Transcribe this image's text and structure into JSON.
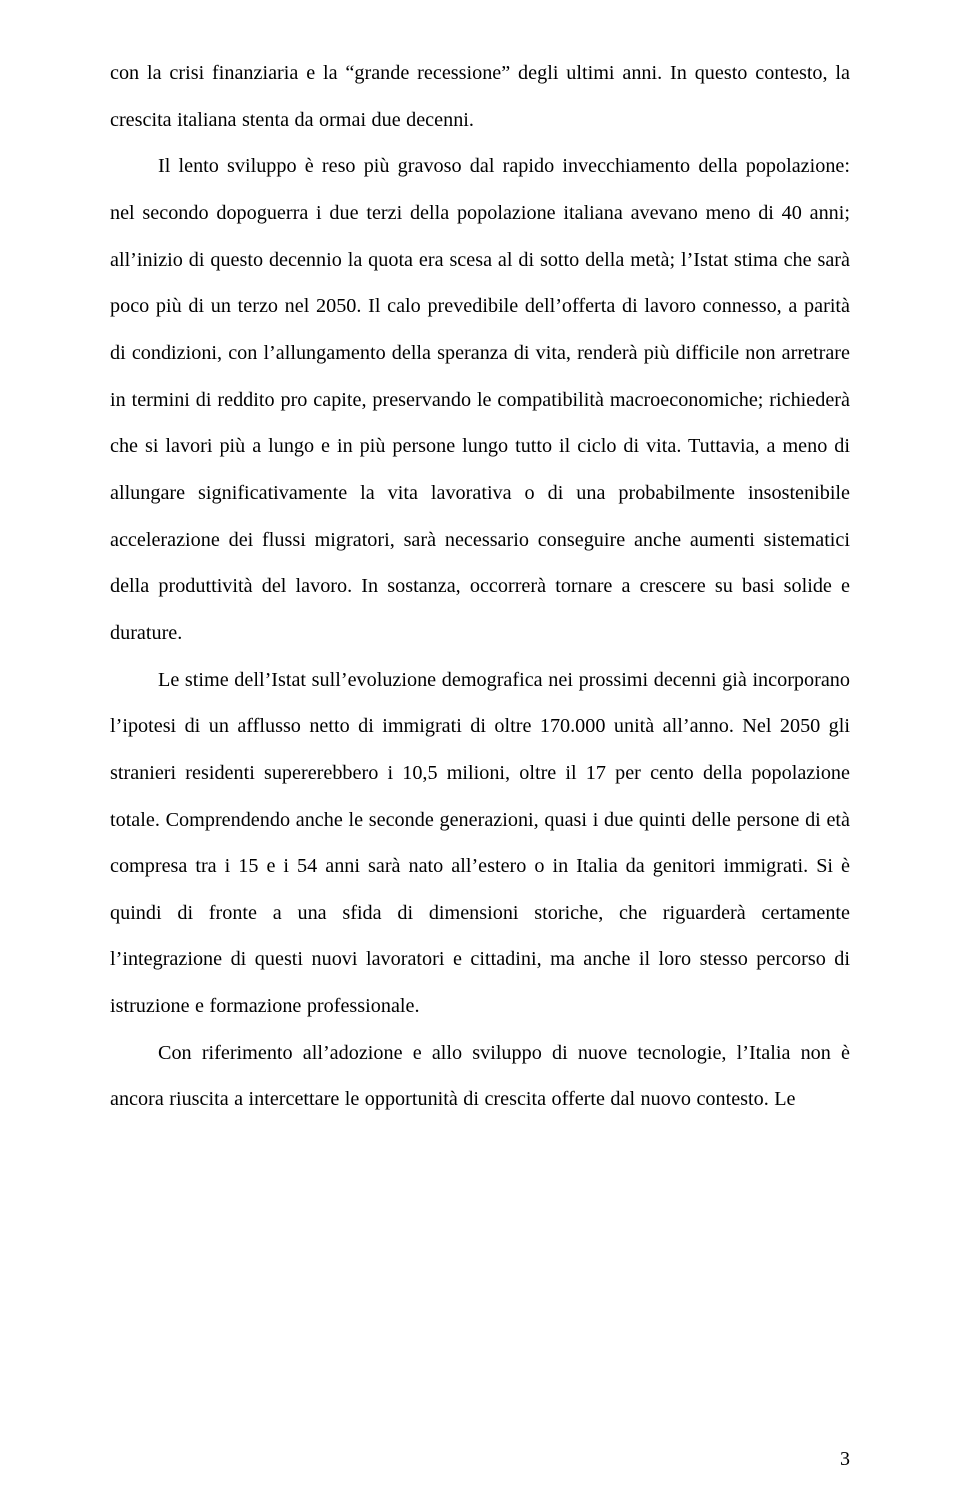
{
  "document": {
    "font_family": "Times New Roman",
    "body_fontsize_pt": 15,
    "line_height": 2.3,
    "text_align": "justify",
    "text_color": "#000000",
    "background_color": "#ffffff",
    "page_number": "3",
    "paragraphs": [
      {
        "indent": false,
        "text": "con la crisi finanziaria e la “grande recessione” degli ultimi anni. In questo contesto, la crescita italiana stenta da ormai due decenni."
      },
      {
        "indent": true,
        "text": "Il lento sviluppo è reso più gravoso dal rapido invecchiamento della popolazione: nel secondo dopoguerra i due terzi della popolazione italiana avevano meno di 40 anni; all’inizio di questo decennio la quota era scesa al di sotto della metà; l’Istat stima che sarà poco più di un terzo nel 2050. Il calo prevedibile dell’offerta di lavoro connesso, a parità di condizioni, con l’allungamento della speranza di vita, renderà più difficile non arretrare in termini di reddito pro capite, preservando le compatibilità macroeconomiche; richiederà che si lavori più a lungo e in più persone lungo tutto il ciclo di vita. Tuttavia, a meno di allungare significativamente la vita lavorativa o di una probabilmente insostenibile accelerazione dei flussi migratori, sarà necessario conseguire anche aumenti sistematici della produttività del lavoro. In sostanza, occorrerà tornare a crescere su basi solide e durature."
      },
      {
        "indent": true,
        "text": "Le stime dell’Istat sull’evoluzione demografica nei prossimi decenni già incorporano l’ipotesi di un afflusso netto di immigrati di oltre 170.000 unità all’anno. Nel 2050 gli stranieri residenti supererebbero i 10,5 milioni, oltre il 17 per cento della popolazione totale. Comprendendo anche le seconde generazioni, quasi i due quinti delle persone di età compresa tra i 15 e i 54 anni sarà nato all’estero o in Italia da genitori immigrati. Si è quindi di fronte a una sfida di dimensioni storiche, che riguarderà certamente l’integrazione di questi nuovi lavoratori e cittadini, ma anche il loro stesso percorso di istruzione e formazione professionale."
      },
      {
        "indent": true,
        "text": "Con riferimento all’adozione e allo sviluppo di nuove tecnologie, l’Italia non è ancora riuscita a intercettare le opportunità di crescita offerte dal nuovo contesto. Le"
      }
    ]
  }
}
